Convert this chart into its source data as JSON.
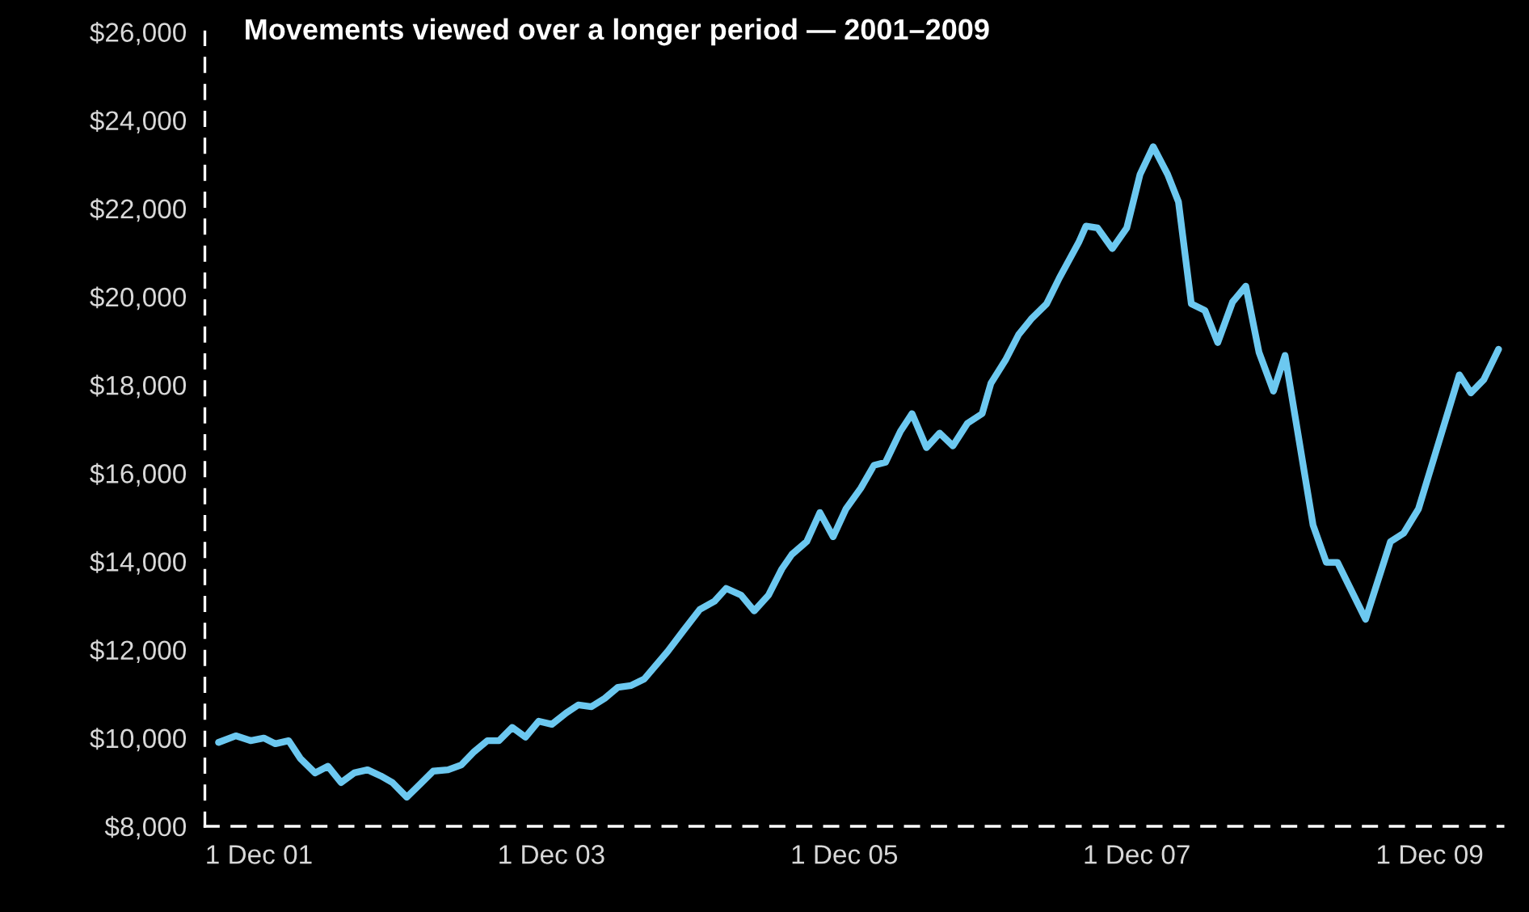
{
  "chart_data": {
    "type": "line",
    "title": "Movements viewed over a longer period — 2001–2009",
    "x": [
      "2001-08-22",
      "2001-10-04",
      "2001-11-10",
      "2001-12-13",
      "2002-01-11",
      "2002-02-13",
      "2002-03-14",
      "2002-04-20",
      "2002-05-22",
      "2002-06-24",
      "2002-07-27",
      "2002-08-29",
      "2002-10-01",
      "2002-10-30",
      "2002-12-05",
      "2003-01-07",
      "2003-02-09",
      "2003-03-18",
      "2003-04-20",
      "2003-05-22",
      "2003-06-24",
      "2003-07-23",
      "2003-08-25",
      "2003-09-27",
      "2003-10-30",
      "2003-12-02",
      "2004-01-07",
      "2004-02-06",
      "2004-03-10",
      "2004-04-12",
      "2004-05-15",
      "2004-06-17",
      "2004-07-20",
      "2004-09-16",
      "2004-10-26",
      "2004-12-05",
      "2005-01-11",
      "2005-02-09",
      "2005-03-18",
      "2005-04-20",
      "2005-05-26",
      "2005-06-28",
      "2005-07-23",
      "2005-08-29",
      "2005-10-01",
      "2005-11-03",
      "2005-12-05",
      "2006-01-11",
      "2006-02-13",
      "2006-03-14",
      "2006-04-20",
      "2006-05-19",
      "2006-06-24",
      "2006-07-27",
      "2006-08-29",
      "2006-10-04",
      "2006-11-10",
      "2006-12-02",
      "2007-01-07",
      "2007-02-09",
      "2007-03-14",
      "2007-04-20",
      "2007-05-22",
      "2007-07-09",
      "2007-07-27",
      "2007-08-25",
      "2007-10-01",
      "2007-11-06",
      "2007-12-09",
      "2008-01-11",
      "2008-02-16",
      "2008-03-14",
      "2008-04-15",
      "2008-05-19",
      "2008-06-20",
      "2008-07-27",
      "2008-08-29",
      "2008-10-01",
      "2008-11-06",
      "2008-12-05",
      "2009-02-13",
      "2009-03-18",
      "2009-04-15",
      "2009-06-24",
      "2009-08-25",
      "2009-09-27",
      "2009-11-03",
      "2010-02-13",
      "2010-03-14",
      "2010-04-15",
      "2010-05-22"
    ],
    "series": [
      {
        "color": "#6cc8f0",
        "values": [
          9900,
          10050,
          9940,
          10000,
          9870,
          9940,
          9540,
          9210,
          9360,
          8990,
          9210,
          9280,
          9140,
          8990,
          8660,
          8950,
          9250,
          9280,
          9390,
          9690,
          9940,
          9940,
          10240,
          10020,
          10380,
          10310,
          10570,
          10750,
          10710,
          10900,
          11150,
          11190,
          11340,
          11960,
          12440,
          12910,
          13100,
          13390,
          13240,
          12880,
          13240,
          13830,
          14160,
          14450,
          15110,
          14560,
          15190,
          15660,
          16180,
          16250,
          16950,
          17350,
          16580,
          16910,
          16620,
          17130,
          17350,
          18040,
          18560,
          19140,
          19510,
          19840,
          20430,
          21230,
          21600,
          21560,
          21090,
          21560,
          22770,
          23400,
          22770,
          22150,
          19840,
          19690,
          18960,
          19880,
          20240,
          18740,
          17860,
          18670,
          14820,
          13980,
          13980,
          12690,
          14450,
          14640,
          15190,
          18230,
          17820,
          18120,
          18810
        ]
      }
    ],
    "xlim": [
      "2001-07-19",
      "2010-06-02"
    ],
    "xticks": [
      {
        "value": "2001-12-01",
        "label": "1 Dec 01"
      },
      {
        "value": "2003-12-01",
        "label": "1 Dec 03"
      },
      {
        "value": "2005-12-01",
        "label": "1 Dec 05"
      },
      {
        "value": "2007-12-01",
        "label": "1 Dec 07"
      },
      {
        "value": "2009-12-01",
        "label": "1 Dec 09"
      }
    ],
    "ylim": [
      8000,
      26000
    ],
    "yticks": [
      {
        "value": 8000,
        "label": "$8,000"
      },
      {
        "value": 10000,
        "label": "$10,000"
      },
      {
        "value": 12000,
        "label": "$12,000"
      },
      {
        "value": 14000,
        "label": "$14,000"
      },
      {
        "value": 16000,
        "label": "$16,000"
      },
      {
        "value": 18000,
        "label": "$18,000"
      },
      {
        "value": 20000,
        "label": "$20,000"
      },
      {
        "value": 22000,
        "label": "$22,000"
      },
      {
        "value": 24000,
        "label": "$24,000"
      },
      {
        "value": 26000,
        "label": "$26,000"
      }
    ],
    "grid": false,
    "line_style": "solid"
  }
}
